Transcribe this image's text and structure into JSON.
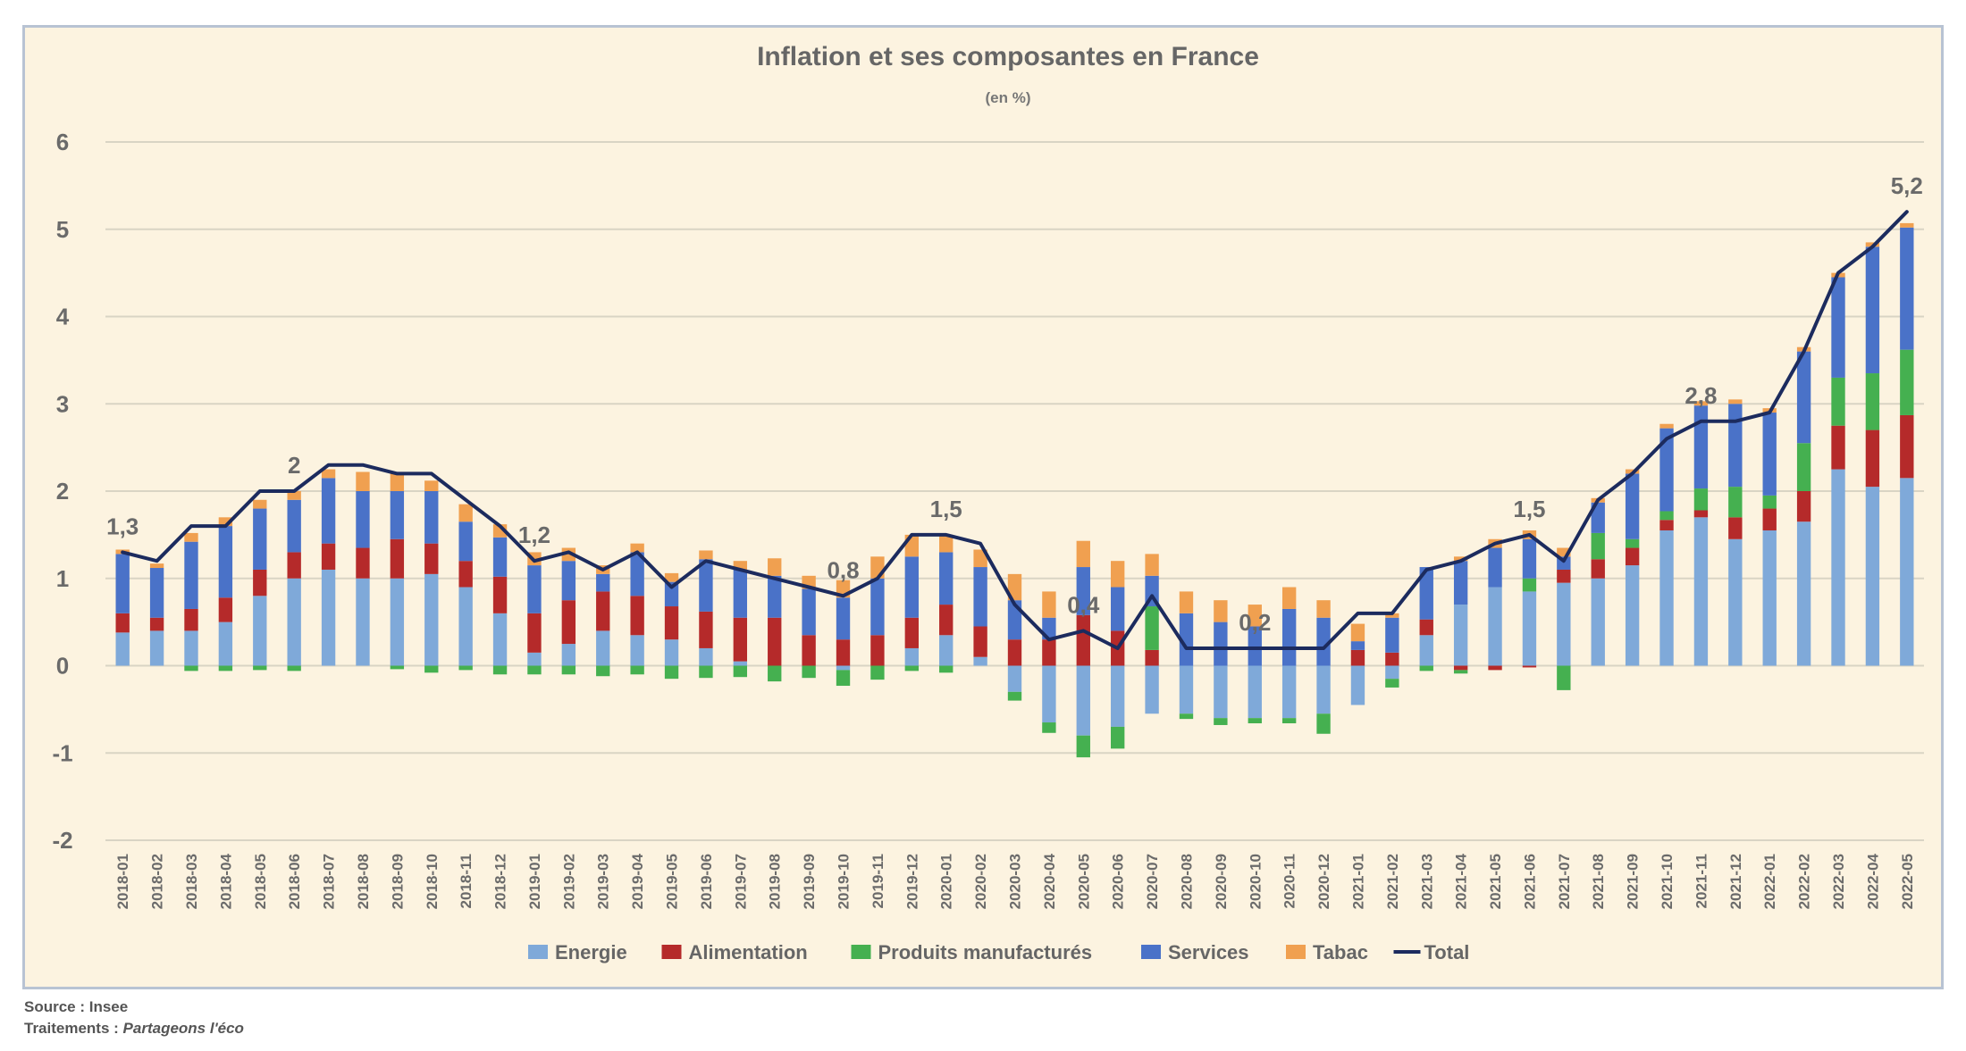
{
  "chart_data": {
    "type": "bar",
    "stacked": true,
    "title": "Inflation et ses composantes en France",
    "subtitle": "(en %)",
    "ylim": [
      -2,
      6
    ],
    "yticks": [
      -2,
      -1,
      0,
      1,
      2,
      3,
      4,
      5,
      6
    ],
    "categories": [
      "2018-01",
      "2018-02",
      "2018-03",
      "2018-04",
      "2018-05",
      "2018-06",
      "2018-07",
      "2018-08",
      "2018-09",
      "2018-10",
      "2018-11",
      "2018-12",
      "2019-01",
      "2019-02",
      "2019-03",
      "2019-04",
      "2019-05",
      "2019-06",
      "2019-07",
      "2019-08",
      "2019-09",
      "2019-10",
      "2019-11",
      "2019-12",
      "2020-01",
      "2020-02",
      "2020-03",
      "2020-04",
      "2020-05",
      "2020-06",
      "2020-07",
      "2020-08",
      "2020-09",
      "2020-10",
      "2020-11",
      "2020-12",
      "2021-01",
      "2021-02",
      "2021-03",
      "2021-04",
      "2021-05",
      "2021-06",
      "2021-07",
      "2021-08",
      "2021-09",
      "2021-10",
      "2021-11",
      "2021-12",
      "2022-01",
      "2022-02",
      "2022-03",
      "2022-04",
      "2022-05"
    ],
    "series": [
      {
        "name": "Energie",
        "color": "#7fa9d9",
        "values": [
          0.38,
          0.4,
          0.4,
          0.5,
          0.8,
          1.0,
          1.1,
          1.0,
          1.0,
          1.05,
          0.9,
          0.6,
          0.15,
          0.25,
          0.4,
          0.35,
          0.3,
          0.2,
          0.05,
          0.0,
          0.0,
          -0.05,
          0.0,
          0.2,
          0.35,
          0.1,
          -0.3,
          -0.65,
          -0.8,
          -0.7,
          -0.55,
          -0.55,
          -0.6,
          -0.6,
          -0.6,
          -0.55,
          -0.45,
          -0.15,
          0.35,
          0.7,
          0.9,
          0.85,
          0.95,
          1.0,
          1.15,
          1.55,
          1.7,
          1.45,
          1.55,
          1.65,
          2.25,
          2.05,
          2.15
        ]
      },
      {
        "name": "Alimentation",
        "color": "#b52a2a",
        "values": [
          0.22,
          0.15,
          0.25,
          0.28,
          0.3,
          0.3,
          0.3,
          0.35,
          0.45,
          0.35,
          0.3,
          0.42,
          0.45,
          0.5,
          0.45,
          0.45,
          0.38,
          0.42,
          0.5,
          0.55,
          0.35,
          0.3,
          0.35,
          0.35,
          0.35,
          0.35,
          0.3,
          0.3,
          0.58,
          0.4,
          0.18,
          0.0,
          0.0,
          0.0,
          0.0,
          0.0,
          0.18,
          0.15,
          0.18,
          -0.05,
          -0.05,
          -0.02,
          0.15,
          0.22,
          0.2,
          0.12,
          0.08,
          0.25,
          0.25,
          0.35,
          0.5,
          0.65,
          0.72
        ]
      },
      {
        "name": "Produits manufacturés",
        "color": "#45b050",
        "values": [
          0.0,
          0.0,
          -0.06,
          -0.06,
          -0.05,
          -0.06,
          0.0,
          0.0,
          -0.04,
          -0.08,
          -0.05,
          -0.1,
          -0.1,
          -0.1,
          -0.12,
          -0.1,
          -0.15,
          -0.14,
          -0.13,
          -0.18,
          -0.14,
          -0.18,
          -0.16,
          -0.06,
          -0.08,
          0.0,
          -0.1,
          -0.12,
          -0.25,
          -0.25,
          0.5,
          -0.06,
          -0.08,
          -0.06,
          -0.06,
          -0.23,
          0.0,
          -0.1,
          -0.06,
          -0.04,
          0.0,
          0.15,
          -0.28,
          0.3,
          0.1,
          0.1,
          0.25,
          0.35,
          0.15,
          0.55,
          0.55,
          0.65,
          0.75
        ]
      },
      {
        "name": "Services",
        "color": "#4a72c8",
        "values": [
          0.68,
          0.57,
          0.77,
          0.82,
          0.7,
          0.6,
          0.75,
          0.65,
          0.55,
          0.6,
          0.45,
          0.45,
          0.55,
          0.45,
          0.2,
          0.5,
          0.28,
          0.6,
          0.55,
          0.48,
          0.53,
          0.48,
          0.65,
          0.7,
          0.6,
          0.68,
          0.45,
          0.25,
          0.55,
          0.5,
          0.35,
          0.6,
          0.5,
          0.45,
          0.65,
          0.55,
          0.1,
          0.4,
          0.6,
          0.5,
          0.45,
          0.45,
          0.15,
          0.35,
          0.75,
          0.95,
          0.95,
          0.95,
          0.95,
          1.05,
          1.15,
          1.45,
          1.4
        ]
      },
      {
        "name": "Tabac",
        "color": "#f0a050",
        "values": [
          0.05,
          0.05,
          0.1,
          0.1,
          0.1,
          0.1,
          0.1,
          0.22,
          0.22,
          0.12,
          0.2,
          0.15,
          0.15,
          0.15,
          0.1,
          0.1,
          0.1,
          0.1,
          0.1,
          0.2,
          0.15,
          0.2,
          0.25,
          0.25,
          0.2,
          0.2,
          0.3,
          0.3,
          0.3,
          0.3,
          0.25,
          0.25,
          0.25,
          0.25,
          0.25,
          0.2,
          0.2,
          0.05,
          0.0,
          0.05,
          0.1,
          0.1,
          0.1,
          0.05,
          0.05,
          0.05,
          0.05,
          0.05,
          0.05,
          0.05,
          0.05,
          0.05,
          0.05
        ]
      }
    ],
    "total": {
      "name": "Total",
      "color": "#1c2b5e",
      "values": [
        1.3,
        1.2,
        1.6,
        1.6,
        2.0,
        2.0,
        2.3,
        2.3,
        2.2,
        2.2,
        1.9,
        1.6,
        1.2,
        1.3,
        1.1,
        1.3,
        0.9,
        1.2,
        1.1,
        1.0,
        0.9,
        0.8,
        1.0,
        1.5,
        1.5,
        1.4,
        0.7,
        0.3,
        0.4,
        0.2,
        0.8,
        0.2,
        0.2,
        0.2,
        0.2,
        0.2,
        0.6,
        0.6,
        1.1,
        1.2,
        1.4,
        1.5,
        1.2,
        1.9,
        2.2,
        2.6,
        2.8,
        2.8,
        2.9,
        3.6,
        4.5,
        4.8,
        5.2
      ]
    },
    "data_labels": [
      {
        "category": "2018-01",
        "text": "1,3"
      },
      {
        "category": "2018-06",
        "text": "2"
      },
      {
        "category": "2019-01",
        "text": "1,2"
      },
      {
        "category": "2019-10",
        "text": "0,8"
      },
      {
        "category": "2020-01",
        "text": "1,5"
      },
      {
        "category": "2020-05",
        "text": "0,4"
      },
      {
        "category": "2020-10",
        "text": "0,2"
      },
      {
        "category": "2021-06",
        "text": "1,5"
      },
      {
        "category": "2021-11",
        "text": "2,8"
      },
      {
        "category": "2022-05",
        "text": "5,2"
      }
    ],
    "legend_position": "bottom"
  },
  "source_label": "Source : Insee",
  "processing_label": "Traitements : ",
  "processing_author": "Partageons l'éco"
}
